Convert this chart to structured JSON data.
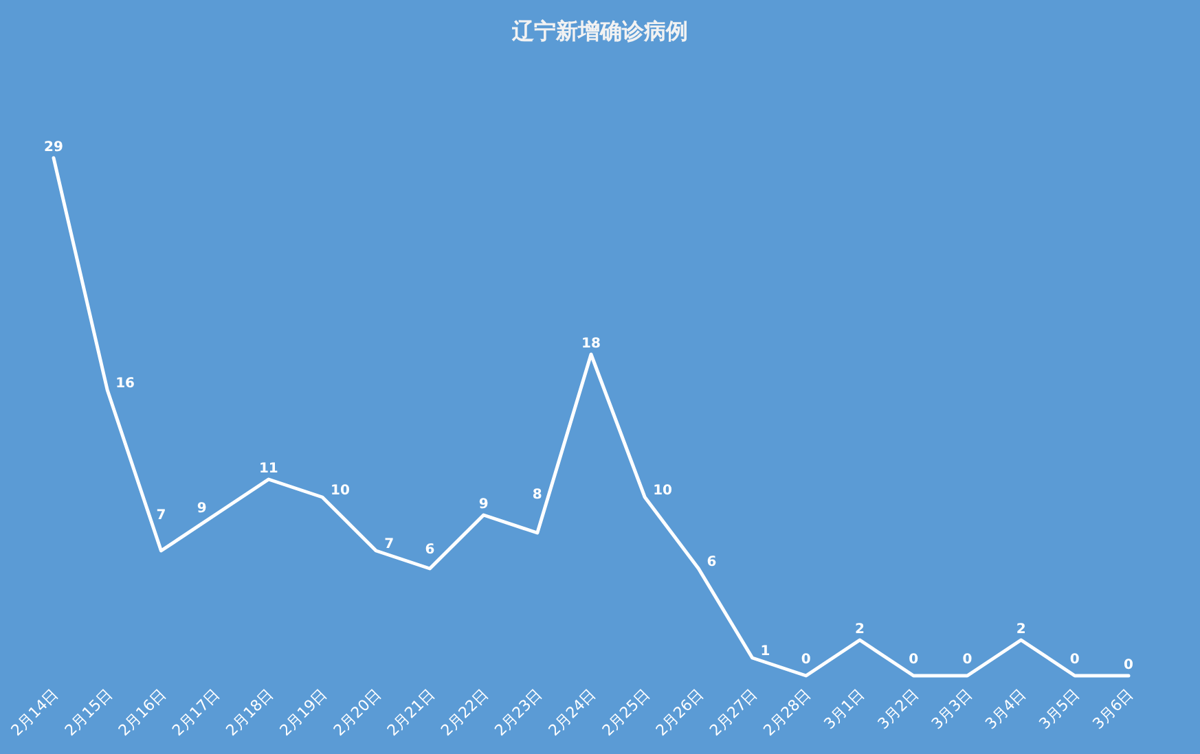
{
  "chart_data": {
    "type": "line",
    "title": "辽宁新增确诊病例",
    "categories": [
      "2月14日",
      "2月15日",
      "2月16日",
      "2月17日",
      "2月18日",
      "2月19日",
      "2月20日",
      "2月21日",
      "2月22日",
      "2月23日",
      "2月24日",
      "2月25日",
      "2月26日",
      "2月27日",
      "2月28日",
      "3月1日",
      "3月2日",
      "3月3日",
      "3月4日",
      "3月5日",
      "3月6日"
    ],
    "series": [
      {
        "color": "#ffffff",
        "values": [
          29,
          16,
          7,
          9,
          11,
          10,
          7,
          6,
          9,
          8,
          18,
          10,
          6,
          1,
          0,
          2,
          0,
          0,
          2,
          0,
          0
        ]
      }
    ],
    "data_labels": true,
    "marker": "none",
    "line_style": "solid"
  }
}
